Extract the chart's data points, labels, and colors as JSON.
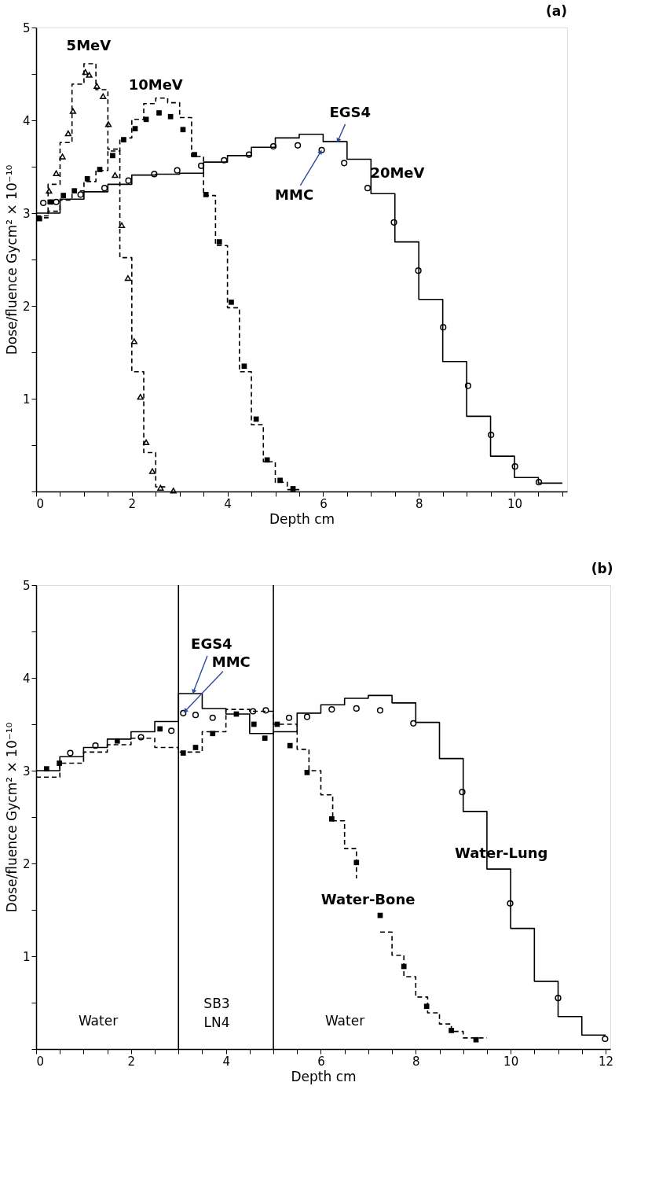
{
  "chart_data": [
    {
      "type": "step",
      "title": "(a)",
      "xlabel": "Depth cm",
      "ylabel": "Dose/fluence Gycm² × 10⁻¹⁰",
      "xlim": [
        0,
        11.1
      ],
      "xticks": [
        0,
        {
          "value": 0.5,
          "label": null
        },
        {
          "value": 1,
          "label": null
        },
        {
          "value": 1.5,
          "label": null
        },
        2,
        {
          "value": 2.5,
          "label": null
        },
        {
          "value": 3,
          "label": null
        },
        {
          "value": 3.5,
          "label": null
        },
        4,
        {
          "value": 4.5,
          "label": null
        },
        {
          "value": 5,
          "label": null
        },
        {
          "value": 5.5,
          "label": null
        },
        6,
        {
          "value": 6.5,
          "label": null
        },
        {
          "value": 7,
          "label": null
        },
        {
          "value": 7.5,
          "label": null
        },
        8,
        {
          "value": 8.5,
          "label": null
        },
        {
          "value": 9,
          "label": null
        },
        {
          "value": 9.5,
          "label": null
        },
        10,
        {
          "value": 10.5,
          "label": null
        },
        {
          "value": 11,
          "label": null
        }
      ],
      "ylim": [
        0,
        5
      ],
      "yticks": [
        {
          "value": 0,
          "label": null
        },
        {
          "value": 0.5,
          "label": null
        },
        1,
        {
          "value": 1.5,
          "label": null
        },
        2,
        {
          "value": 2.5,
          "label": null
        },
        3,
        {
          "value": 3.5,
          "label": null
        },
        4,
        {
          "value": 4.5,
          "label": null
        },
        5
      ],
      "series": [
        {
          "name": "5MeV",
          "type": "step",
          "line_style": "dashed",
          "color": "#000000",
          "x": [
            0,
            0.25,
            0.5,
            0.75,
            1,
            1.25,
            1.5,
            1.75,
            2,
            2.25,
            2.5,
            2.75
          ],
          "values": [
            2.97,
            3.31,
            3.76,
            4.39,
            4.61,
            4.33,
            3.69,
            2.52,
            1.29,
            0.42,
            0.05,
            0.05
          ]
        },
        {
          "type": "scatter",
          "marker": "triangle",
          "color": "#000000",
          "x": [
            0.27,
            0.42,
            0.55,
            0.67,
            0.77,
            1.03,
            1.11,
            1.27,
            1.4,
            1.51,
            1.65,
            1.79,
            1.92,
            2.05,
            2.18,
            2.3,
            2.43,
            2.6,
            2.87
          ],
          "values": [
            3.24,
            3.43,
            3.61,
            3.86,
            4.1,
            4.52,
            4.49,
            4.37,
            4.26,
            3.96,
            3.41,
            2.87,
            2.3,
            1.62,
            1.02,
            0.53,
            0.22,
            0.04,
            0.01
          ]
        },
        {
          "name": "10MeV",
          "type": "step",
          "line_style": "dashed",
          "color": "#000000",
          "x": [
            0,
            0.25,
            0.5,
            0.75,
            1,
            1.25,
            1.5,
            1.75,
            2,
            2.25,
            2.5,
            2.75,
            3,
            3.25,
            3.5,
            3.75,
            4,
            4.25,
            4.5,
            4.75,
            5,
            5.25,
            5.5
          ],
          "values": [
            2.95,
            3.02,
            3.14,
            3.24,
            3.34,
            3.46,
            3.67,
            3.81,
            4.01,
            4.18,
            4.24,
            4.19,
            4.03,
            3.61,
            3.19,
            2.65,
            1.98,
            1.29,
            0.72,
            0.32,
            0.1,
            0.02,
            0.02
          ]
        },
        {
          "type": "scatter",
          "marker": "square",
          "color": "#000000",
          "x": [
            0.07,
            0.31,
            0.57,
            0.8,
            1.07,
            1.33,
            1.6,
            1.83,
            2.07,
            2.3,
            2.57,
            2.81,
            3.07,
            3.31,
            3.55,
            3.83,
            4.08,
            4.35,
            4.6,
            4.83,
            5.1,
            5.37
          ],
          "values": [
            2.94,
            3.12,
            3.19,
            3.24,
            3.37,
            3.47,
            3.62,
            3.79,
            3.91,
            4.01,
            4.08,
            4.04,
            3.9,
            3.63,
            3.2,
            2.69,
            2.04,
            1.35,
            0.78,
            0.34,
            0.12,
            0.03
          ]
        },
        {
          "name": "20MeV",
          "type": "step",
          "line_style": "solid",
          "color": "#000000",
          "x": [
            0,
            0.5,
            1,
            1.5,
            2,
            2.5,
            3,
            3.5,
            4,
            4.5,
            5,
            5.5,
            6,
            6.5,
            7,
            7.5,
            8,
            8.5,
            9,
            9.5,
            10,
            10.5,
            11
          ],
          "values": [
            3.0,
            3.15,
            3.23,
            3.31,
            3.41,
            3.42,
            3.43,
            3.55,
            3.62,
            3.71,
            3.81,
            3.85,
            3.77,
            3.58,
            3.21,
            2.69,
            2.07,
            1.4,
            0.81,
            0.38,
            0.15,
            0.09,
            0.09
          ]
        },
        {
          "type": "scatter",
          "marker": "circle",
          "color": "#000000",
          "x": [
            0.15,
            0.42,
            0.93,
            1.43,
            1.93,
            2.47,
            2.95,
            3.45,
            3.93,
            4.45,
            4.96,
            5.47,
            5.97,
            6.44,
            6.93,
            7.48,
            7.99,
            8.51,
            9.03,
            9.51,
            10.01,
            10.51
          ],
          "values": [
            3.11,
            3.12,
            3.2,
            3.27,
            3.35,
            3.42,
            3.46,
            3.51,
            3.57,
            3.63,
            3.72,
            3.73,
            3.68,
            3.54,
            3.27,
            2.9,
            2.38,
            1.77,
            1.14,
            0.61,
            0.27,
            0.1
          ]
        }
      ],
      "annotations": [
        {
          "text": "EGS4",
          "x": 6.3,
          "y": 3.77
        },
        {
          "text": "MMC",
          "x": 5.97,
          "y": 3.68
        }
      ]
    },
    {
      "type": "step",
      "title": "(b)",
      "xlabel": "Depth cm",
      "ylabel": "Dose/fluence Gycm² × 10⁻¹⁰",
      "xlim": [
        0,
        12.1
      ],
      "xticks": [
        0,
        {
          "value": 0.5,
          "label": null
        },
        {
          "value": 1,
          "label": null
        },
        {
          "value": 1.5,
          "label": null
        },
        2,
        {
          "value": 2.5,
          "label": null
        },
        {
          "value": 3,
          "label": null
        },
        {
          "value": 3.5,
          "label": null
        },
        4,
        {
          "value": 4.5,
          "label": null
        },
        {
          "value": 5,
          "label": null
        },
        {
          "value": 5.5,
          "label": null
        },
        6,
        {
          "value": 6.5,
          "label": null
        },
        {
          "value": 7,
          "label": null
        },
        {
          "value": 7.5,
          "label": null
        },
        8,
        {
          "value": 8.5,
          "label": null
        },
        {
          "value": 9,
          "label": null
        },
        {
          "value": 9.5,
          "label": null
        },
        10,
        {
          "value": 10.5,
          "label": null
        },
        {
          "value": 11,
          "label": null
        },
        {
          "value": 11.5,
          "label": null
        },
        12
      ],
      "ylim": [
        0,
        5
      ],
      "yticks": [
        {
          "value": 0,
          "label": null
        },
        {
          "value": 0.5,
          "label": null
        },
        1,
        {
          "value": 1.5,
          "label": null
        },
        2,
        {
          "value": 2.5,
          "label": null
        },
        3,
        {
          "value": 3.5,
          "label": null
        },
        4,
        {
          "value": 4.5,
          "label": null
        },
        5
      ],
      "series": [
        {
          "name": "Water-Lung",
          "type": "step",
          "line_style": "solid",
          "color": "#000000",
          "x": [
            0,
            0.5,
            1,
            1.5,
            2,
            2.5,
            3,
            3.5,
            4,
            4.5,
            5,
            5.5,
            6,
            6.5,
            7,
            7.5,
            8,
            8.5,
            9,
            9.5,
            10,
            10.5,
            11,
            11.5,
            12
          ],
          "values": [
            3.0,
            3.15,
            3.25,
            3.34,
            3.42,
            3.53,
            3.83,
            3.67,
            3.61,
            3.4,
            3.42,
            3.62,
            3.71,
            3.78,
            3.81,
            3.73,
            3.52,
            3.13,
            2.56,
            1.94,
            1.3,
            0.73,
            0.35,
            0.15,
            0.15
          ]
        },
        {
          "type": "scatter",
          "marker": "circle",
          "color": "#000000",
          "x": [
            0.72,
            1.25,
            2.21,
            2.85,
            3.1,
            3.36,
            3.72,
            4.57,
            4.84,
            5.33,
            5.71,
            6.23,
            6.75,
            7.25,
            7.95,
            8.98,
            9.99,
            11.0,
            11.99
          ],
          "values": [
            3.19,
            3.27,
            3.36,
            3.43,
            3.62,
            3.6,
            3.57,
            3.64,
            3.65,
            3.57,
            3.58,
            3.66,
            3.67,
            3.65,
            3.51,
            2.77,
            1.57,
            0.55,
            0.11
          ]
        },
        {
          "name": "Water-Bone",
          "type": "step",
          "line_style": "dashed",
          "color": "#000000",
          "x": [
            0,
            0.5,
            1,
            1.5,
            2,
            2.5,
            3,
            3.5,
            4,
            4.5,
            5,
            5.5,
            5.75,
            6,
            6.25,
            6.5,
            6.75,
            7,
            7.25,
            7.5,
            7.75,
            8,
            8.25,
            8.5,
            8.75,
            9,
            9.5
          ],
          "values": [
            2.93,
            3.08,
            3.2,
            3.28,
            3.35,
            3.25,
            3.2,
            3.42,
            3.66,
            3.64,
            3.5,
            3.23,
            3.0,
            2.74,
            2.46,
            2.16,
            1.84,
            null,
            1.26,
            1.01,
            0.78,
            0.56,
            0.39,
            0.27,
            0.19,
            0.12,
            0.12
          ]
        },
        {
          "type": "scatter",
          "marker": "square",
          "color": "#000000",
          "x": [
            0.22,
            0.49,
            1.71,
            2.61,
            3.1,
            3.36,
            3.72,
            4.22,
            4.59,
            4.82,
            5.08,
            5.35,
            5.71,
            6.23,
            6.75,
            7.25,
            7.75,
            8.23,
            8.75,
            9.27
          ],
          "values": [
            3.02,
            3.08,
            3.32,
            3.45,
            3.19,
            3.25,
            3.4,
            3.61,
            3.5,
            3.35,
            3.5,
            3.27,
            2.98,
            2.48,
            2.01,
            1.44,
            0.89,
            0.46,
            0.2,
            0.1
          ]
        }
      ],
      "ref_lines": [
        {
          "axis": "x",
          "value": 3,
          "color": "#000000"
        },
        {
          "axis": "x",
          "value": 5,
          "color": "#000000"
        }
      ],
      "annotations": [
        {
          "text": "EGS4",
          "x": 3.3,
          "y": 3.83
        },
        {
          "text": "MMC",
          "x": 3.1,
          "y": 3.62
        },
        "Water",
        "SB3",
        "LN4",
        "Water"
      ]
    }
  ]
}
